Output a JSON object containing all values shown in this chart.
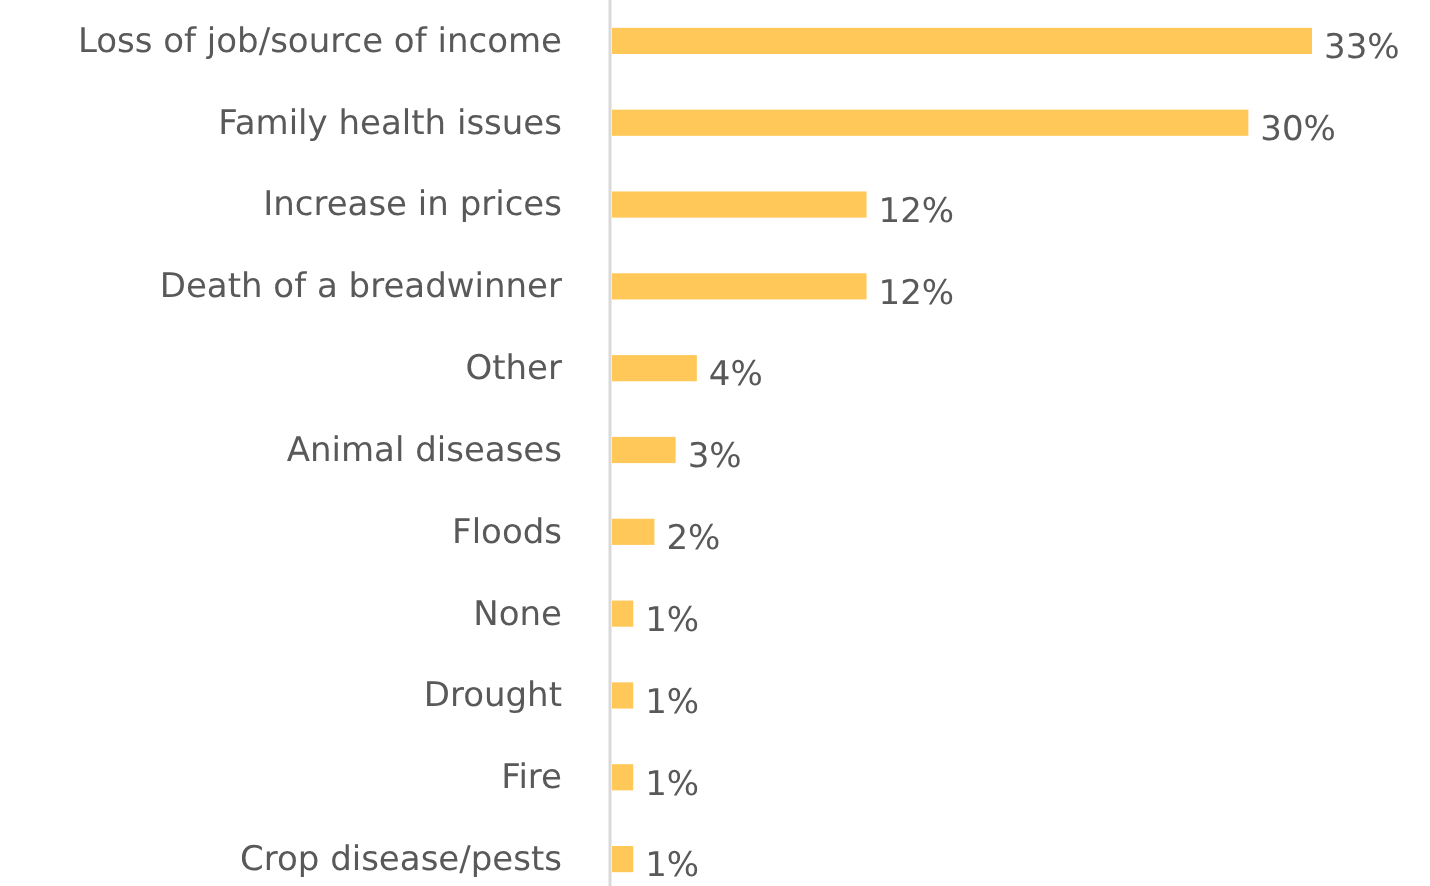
{
  "chart_data": {
    "type": "bar",
    "orientation": "horizontal",
    "categories": [
      "Loss of job/source of income",
      "Family health issues",
      "Increase in prices",
      "Death of a breadwinner",
      "Other",
      "Animal diseases",
      "Floods",
      "None",
      "Drought",
      "Fire",
      "Crop disease/pests"
    ],
    "values": [
      33,
      30,
      12,
      12,
      4,
      3,
      2,
      1,
      1,
      1,
      1
    ],
    "value_labels": [
      "33%",
      "30%",
      "12%",
      "12%",
      "4%",
      "3%",
      "2%",
      "1%",
      "1%",
      "1%",
      "1%"
    ],
    "color": "#ffc858"
  }
}
